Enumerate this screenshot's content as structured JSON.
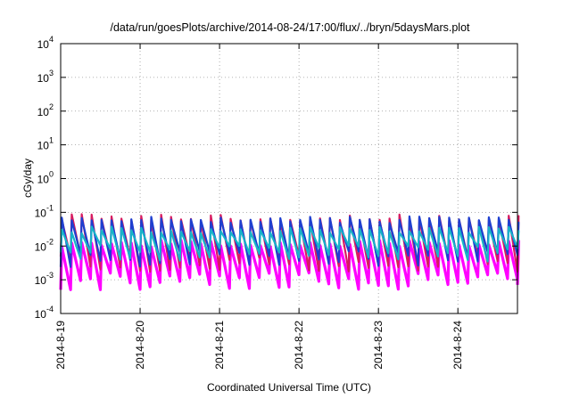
{
  "chart_data": {
    "type": "line",
    "title": "/data/run/goesPlots/archive/2014-08-24/17:00/flux/../bryn/5daysMars.plot",
    "xlabel": "Coordinated Universal Time (UTC)",
    "ylabel": "cGy/day",
    "yscale": "log",
    "ylim": [
      0.0001,
      10000
    ],
    "y_ticks": [
      {
        "base": "10",
        "exp": "-4",
        "value": 0.0001
      },
      {
        "base": "10",
        "exp": "-3",
        "value": 0.001
      },
      {
        "base": "10",
        "exp": "-2",
        "value": 0.01
      },
      {
        "base": "10",
        "exp": "-1",
        "value": 0.1
      },
      {
        "base": "10",
        "exp": "0",
        "value": 1
      },
      {
        "base": "10",
        "exp": "1",
        "value": 10
      },
      {
        "base": "10",
        "exp": "2",
        "value": 100
      },
      {
        "base": "10",
        "exp": "3",
        "value": 1000
      },
      {
        "base": "10",
        "exp": "4",
        "value": 10000
      }
    ],
    "xlim": [
      "2014-08-19 00:00",
      "2014-08-24 18:00"
    ],
    "x_ticks": [
      "2014-8-19",
      "2014-8-20",
      "2014-8-21",
      "2014-8-22",
      "2014-8-23",
      "2014-8-24"
    ],
    "grid": true,
    "legend": "none",
    "pattern": {
      "period_hours": 3,
      "description": "sawtooth dose-rate bands, sharp rise then decay every ~3 hours",
      "series_colors": [
        "#d81b60",
        "#1e3fd0",
        "#17b3c9",
        "#ff00ff"
      ]
    },
    "series": [
      {
        "color": "#ff00ff",
        "low": 0.0009,
        "high": 0.012
      },
      {
        "color": "#d81b60",
        "low": 0.003,
        "high": 0.07
      },
      {
        "color": "#1e3fd0",
        "low": 0.004,
        "high": 0.06
      },
      {
        "color": "#17b3c9",
        "low": 0.006,
        "high": 0.03
      }
    ]
  }
}
